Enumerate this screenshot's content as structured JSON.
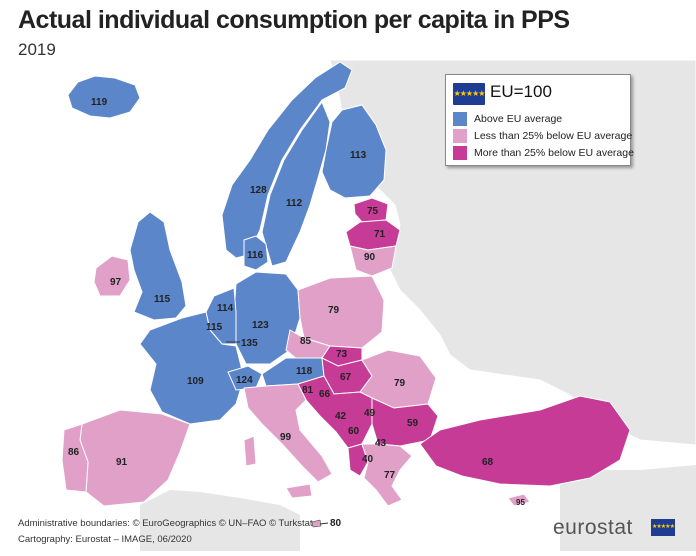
{
  "title": "Actual individual consumption per capita in PPS",
  "subtitle": "2019",
  "colors": {
    "above": "#5b86c9",
    "less25": "#e1a0c8",
    "more25": "#c63b95",
    "nonEU": "#e6e6e6",
    "sea": "#ffffff",
    "border": "#ffffff"
  },
  "legend": {
    "head": "EU=100",
    "items": [
      {
        "label": "Above EU average",
        "color": "#5b86c9"
      },
      {
        "label": "Less than 25% below EU average",
        "color": "#e1a0c8"
      },
      {
        "label": "More than 25% below EU average",
        "color": "#c63b95"
      }
    ]
  },
  "values": {
    "iceland": "119",
    "norway": "128",
    "sweden": "112",
    "finland": "113",
    "estonia": "75",
    "latvia": "71",
    "lithuania": "90",
    "denmark": "116",
    "ireland": "97",
    "uk": "115",
    "netherlands": "114",
    "belgium": "115",
    "luxembourg": "135",
    "germany": "123",
    "poland": "79",
    "czechia": "85",
    "slovakia": "73",
    "austria": "118",
    "hungary": "67",
    "romania": "79",
    "slovenia": "81",
    "croatia": "66",
    "bosnia": "42",
    "serbia": "49",
    "montenegro": "60",
    "north_macedonia": "43",
    "albania": "40",
    "bulgaria": "59",
    "greece": "77",
    "turkey": "68",
    "cyprus": "95",
    "france": "109",
    "switzerland": "124",
    "italy": "99",
    "spain": "91",
    "portugal": "86",
    "malta": "80"
  },
  "footer": {
    "line1": "Administrative boundaries: © EuroGeographics © UN–FAO © Turkstat",
    "line2": "Cartography: Eurostat – IMAGE, 06/2020"
  },
  "logo": "eurostat",
  "flag_icon": "eu-flag-icon"
}
